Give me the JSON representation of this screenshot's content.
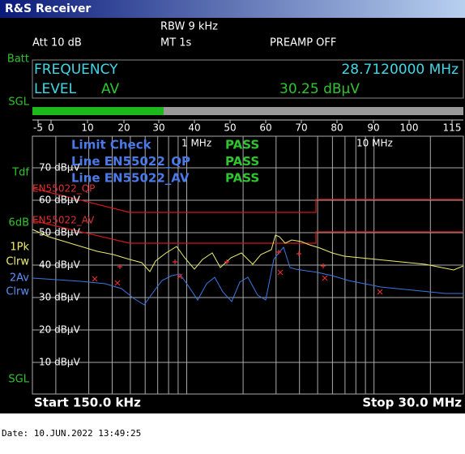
{
  "title": "R&S Receiver",
  "header": {
    "rbw": "RBW 9 kHz",
    "att": "Att  10 dB",
    "mt": "MT  1s",
    "preamp": "PREAMP OFF"
  },
  "side_labels": [
    "Batt",
    "SGL",
    "Tdf",
    "6dB",
    "1Pk",
    "Clrw",
    "2Av",
    "Clrw",
    "SGL"
  ],
  "readout": {
    "frequency_label": "FREQUENCY",
    "frequency": "28.7120000 MHz",
    "level_label": "LEVEL",
    "detector": "AV",
    "level": "30.25 dBµV"
  },
  "scale": [
    "-5",
    "0",
    "10",
    "20",
    "30",
    "40",
    "50",
    "60",
    "70",
    "80",
    "90",
    "100",
    "115"
  ],
  "graph": {
    "y_labels": [
      "70 dBµV",
      "60 dBµV",
      "50 dBµV",
      "40 dBµV",
      "30 dBµV",
      "20 dBµV",
      "10 dBµV"
    ],
    "freq_markers": [
      "1 MHz",
      "10 MHz"
    ],
    "limit_labels": [
      "EN55022_QP",
      "EN55022_AV"
    ],
    "limit_check": [
      {
        "name": "Limit Check",
        "result": "PASS"
      },
      {
        "name": "Line EN55022_QP",
        "result": "PASS"
      },
      {
        "name": "Line EN55022_AV",
        "result": "PASS"
      }
    ]
  },
  "footer": {
    "start": "Start 150.0 kHz",
    "stop": "Stop 30.0 MHz"
  },
  "date": "Date: 10.JUN.2022  13:49:25"
}
